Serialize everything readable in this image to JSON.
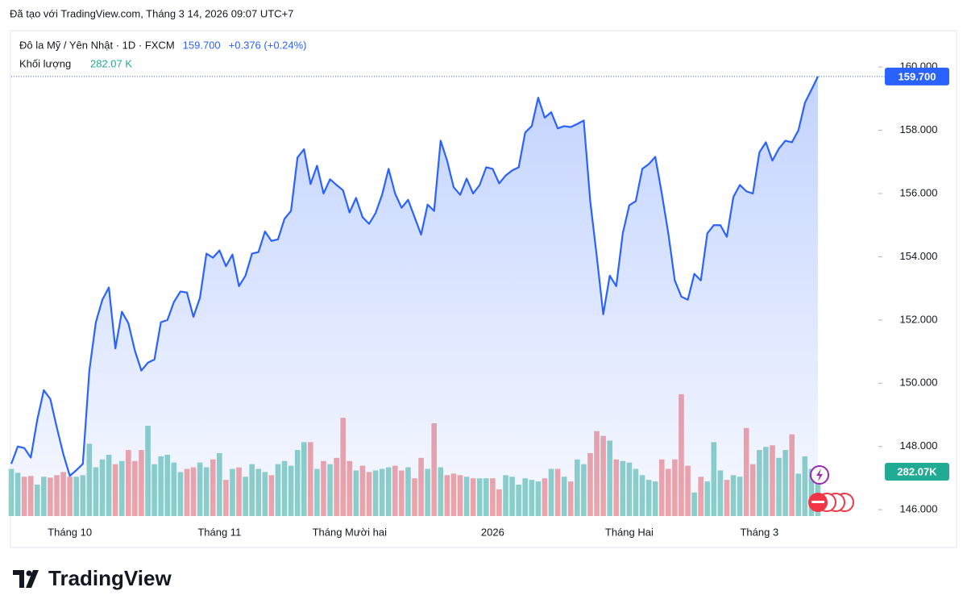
{
  "chart_data": {
    "type": "line",
    "attribution": "Đã tạo với TradingView.com, Tháng 3 14, 2026 09:07 UTC+7",
    "change": "+0.376 (+0.24%)",
    "logo": "TradingView",
    "categories": [
      null,
      null,
      null,
      null,
      null,
      null,
      null,
      null,
      null,
      "Tháng 10",
      null,
      null,
      null,
      null,
      null,
      null,
      null,
      null,
      null,
      null,
      null,
      null,
      null,
      null,
      null,
      null,
      null,
      null,
      null,
      null,
      null,
      null,
      "Tháng 11",
      null,
      null,
      null,
      null,
      null,
      null,
      null,
      null,
      null,
      null,
      null,
      null,
      null,
      null,
      null,
      null,
      null,
      null,
      null,
      "Tháng Mười hai",
      null,
      null,
      null,
      null,
      null,
      null,
      null,
      null,
      null,
      null,
      null,
      null,
      null,
      null,
      null,
      null,
      null,
      null,
      null,
      null,
      null,
      "2026",
      null,
      null,
      null,
      null,
      null,
      null,
      null,
      null,
      null,
      null,
      null,
      null,
      null,
      null,
      null,
      null,
      null,
      null,
      null,
      null,
      "Tháng Hai",
      null,
      null,
      null,
      null,
      null,
      null,
      null,
      null,
      null,
      null,
      null,
      null,
      null,
      null,
      null,
      null,
      null,
      null,
      null,
      "Tháng 3",
      null,
      null,
      null,
      null,
      null,
      null,
      null,
      null,
      null
    ],
    "series": [
      {
        "name": "Đô la Mỹ / Yên Nhật · 1D · FXCM",
        "color": "#2962ff",
        "value_label": "159.700",
        "values": [
          147.45,
          148.0,
          147.95,
          147.65,
          148.85,
          149.78,
          149.5,
          148.6,
          147.76,
          147.07,
          147.25,
          147.45,
          150.4,
          151.93,
          152.64,
          153.03,
          151.1,
          152.26,
          151.9,
          151.03,
          150.4,
          150.65,
          150.75,
          151.93,
          152.0,
          152.57,
          152.9,
          152.87,
          152.1,
          152.7,
          154.1,
          153.97,
          154.2,
          153.7,
          154.07,
          153.07,
          153.4,
          154.1,
          154.15,
          154.8,
          154.5,
          154.55,
          155.2,
          155.45,
          157.14,
          157.4,
          156.3,
          156.88,
          156.0,
          156.45,
          156.27,
          156.1,
          155.4,
          155.86,
          155.25,
          155.04,
          155.38,
          155.96,
          156.78,
          156.0,
          155.55,
          155.8,
          155.25,
          154.7,
          155.65,
          155.45,
          157.67,
          157.04,
          156.2,
          155.96,
          156.47,
          156.0,
          156.27,
          156.83,
          156.78,
          156.32,
          156.57,
          156.73,
          156.83,
          157.93,
          158.13,
          159.03,
          158.4,
          158.57,
          158.06,
          158.13,
          158.1,
          158.2,
          158.31,
          155.76,
          154.02,
          152.18,
          153.4,
          153.07,
          154.74,
          155.63,
          155.76,
          156.78,
          156.93,
          157.16,
          156.0,
          154.74,
          153.25,
          152.74,
          152.64,
          153.46,
          153.25,
          154.74,
          155.0,
          155.0,
          154.63,
          155.89,
          156.27,
          156.07,
          156.0,
          157.3,
          157.62,
          157.04,
          157.42,
          157.67,
          157.62,
          158.0,
          158.87,
          159.28,
          159.7
        ]
      }
    ],
    "volume": {
      "name": "Khối lượng",
      "header_label": "282.07 K",
      "tag_label": "282.07K",
      "up_color": "#8fd3c8",
      "down_color": "#f5a6a6",
      "tag_color": "#22ab94",
      "values": [
        300,
        275,
        250,
        255,
        200,
        250,
        245,
        260,
        280,
        250,
        250,
        260,
        460,
        310,
        360,
        390,
        330,
        350,
        420,
        350,
        420,
        574,
        330,
        380,
        390,
        340,
        280,
        300,
        310,
        340,
        310,
        360,
        400,
        230,
        300,
        310,
        250,
        330,
        300,
        280,
        260,
        330,
        350,
        320,
        420,
        470,
        470,
        300,
        350,
        330,
        370,
        625,
        350,
        290,
        320,
        280,
        290,
        300,
        310,
        320,
        290,
        310,
        240,
        370,
        300,
        590,
        310,
        260,
        270,
        260,
        250,
        240,
        240,
        240,
        240,
        170,
        260,
        250,
        200,
        240,
        230,
        220,
        240,
        300,
        300,
        250,
        220,
        360,
        330,
        400,
        540,
        510,
        480,
        360,
        350,
        340,
        300,
        260,
        230,
        220,
        360,
        300,
        360,
        775,
        320,
        150,
        250,
        220,
        470,
        290,
        230,
        260,
        250,
        560,
        330,
        420,
        440,
        450,
        370,
        420,
        520,
        270,
        380,
        300,
        282.07
      ]
    },
    "ylim": [
      145.8,
      161.1
    ],
    "yticks": [
      {
        "value": 146,
        "label": "146.000"
      },
      {
        "value": 148,
        "label": "148.000"
      },
      {
        "value": 150,
        "label": "150.000"
      },
      {
        "value": 152,
        "label": "152.000"
      },
      {
        "value": 154,
        "label": "154.000"
      },
      {
        "value": 156,
        "label": "156.000"
      },
      {
        "value": 158,
        "label": "158.000"
      },
      {
        "value": 160,
        "label": "160.000"
      }
    ]
  }
}
